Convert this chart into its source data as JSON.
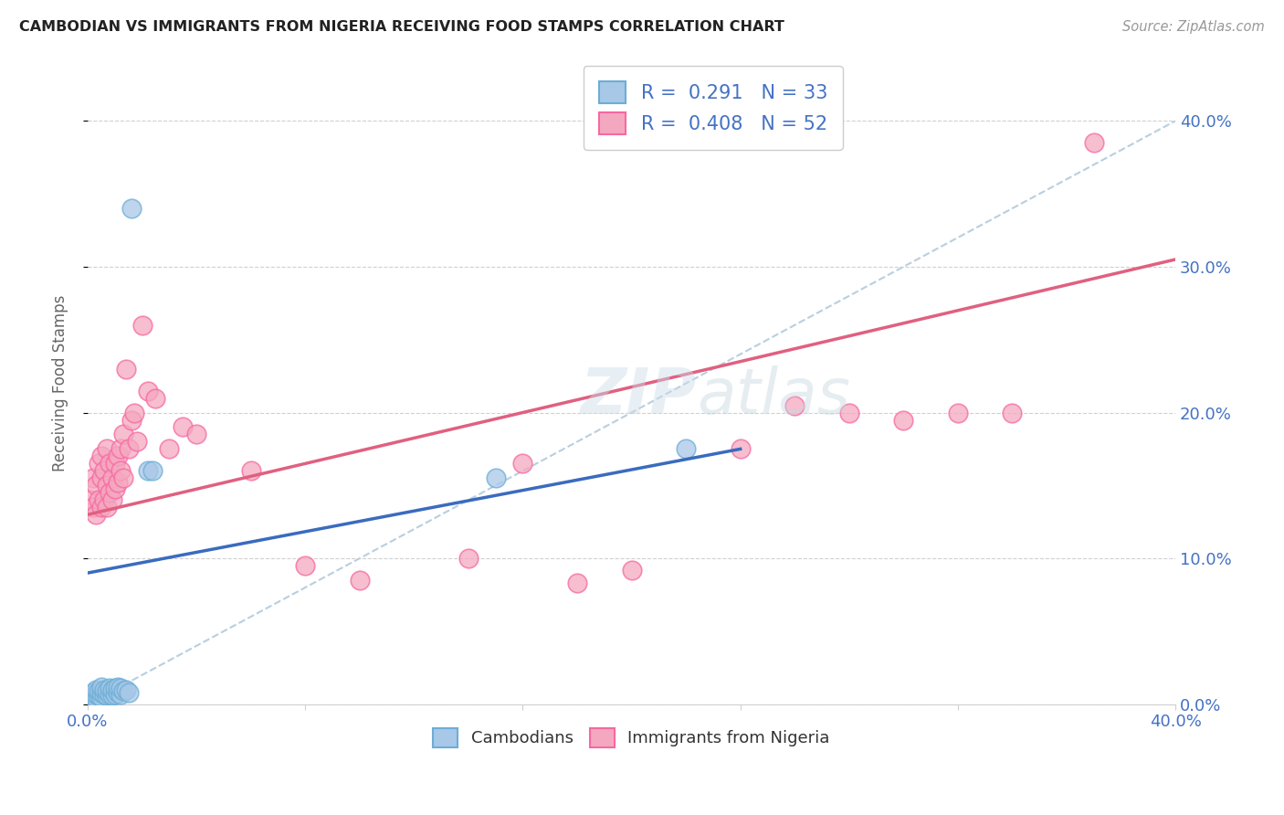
{
  "title": "CAMBODIAN VS IMMIGRANTS FROM NIGERIA RECEIVING FOOD STAMPS CORRELATION CHART",
  "source": "Source: ZipAtlas.com",
  "ylabel": "Receiving Food Stamps",
  "xlim": [
    0.0,
    0.4
  ],
  "ylim": [
    0.0,
    0.44
  ],
  "watermark": "ZIPatlas",
  "cambodian_color": "#a8c8e8",
  "nigeria_color": "#f4a8c0",
  "cambodian_edge": "#6baed6",
  "nigeria_edge": "#f768a1",
  "blue_line_color": "#3a6bbf",
  "pink_line_color": "#e06080",
  "dashed_line_color": "#b8cfe0",
  "legend_text_color": "#4472c4",
  "grid_color": "#d0d0d0",
  "cam_scatter_x": [
    0.001,
    0.002,
    0.002,
    0.003,
    0.003,
    0.003,
    0.004,
    0.004,
    0.005,
    0.005,
    0.005,
    0.006,
    0.006,
    0.007,
    0.007,
    0.008,
    0.008,
    0.009,
    0.009,
    0.01,
    0.01,
    0.011,
    0.011,
    0.012,
    0.012,
    0.013,
    0.014,
    0.015,
    0.016,
    0.022,
    0.024,
    0.15,
    0.22
  ],
  "cam_scatter_y": [
    0.006,
    0.005,
    0.008,
    0.004,
    0.007,
    0.01,
    0.006,
    0.009,
    0.005,
    0.008,
    0.012,
    0.007,
    0.01,
    0.006,
    0.009,
    0.007,
    0.011,
    0.006,
    0.01,
    0.007,
    0.011,
    0.008,
    0.012,
    0.007,
    0.011,
    0.009,
    0.01,
    0.008,
    0.34,
    0.16,
    0.16,
    0.155,
    0.175
  ],
  "nig_scatter_x": [
    0.001,
    0.002,
    0.002,
    0.003,
    0.003,
    0.004,
    0.004,
    0.005,
    0.005,
    0.005,
    0.006,
    0.006,
    0.007,
    0.007,
    0.007,
    0.008,
    0.008,
    0.009,
    0.009,
    0.01,
    0.01,
    0.011,
    0.011,
    0.012,
    0.012,
    0.013,
    0.013,
    0.014,
    0.015,
    0.016,
    0.017,
    0.018,
    0.02,
    0.022,
    0.025,
    0.03,
    0.035,
    0.04,
    0.06,
    0.08,
    0.1,
    0.14,
    0.16,
    0.18,
    0.2,
    0.24,
    0.26,
    0.28,
    0.3,
    0.32,
    0.34,
    0.37
  ],
  "nig_scatter_y": [
    0.14,
    0.135,
    0.155,
    0.13,
    0.15,
    0.14,
    0.165,
    0.135,
    0.155,
    0.17,
    0.14,
    0.16,
    0.135,
    0.15,
    0.175,
    0.145,
    0.165,
    0.14,
    0.155,
    0.148,
    0.165,
    0.152,
    0.17,
    0.16,
    0.175,
    0.155,
    0.185,
    0.23,
    0.175,
    0.195,
    0.2,
    0.18,
    0.26,
    0.215,
    0.21,
    0.175,
    0.19,
    0.185,
    0.16,
    0.095,
    0.085,
    0.1,
    0.165,
    0.083,
    0.092,
    0.175,
    0.205,
    0.2,
    0.195,
    0.2,
    0.2,
    0.385
  ],
  "blue_line_x0": 0.0,
  "blue_line_y0": 0.09,
  "blue_line_x1": 0.24,
  "blue_line_y1": 0.175,
  "pink_line_x0": 0.0,
  "pink_line_y0": 0.13,
  "pink_line_x1": 0.4,
  "pink_line_y1": 0.305
}
